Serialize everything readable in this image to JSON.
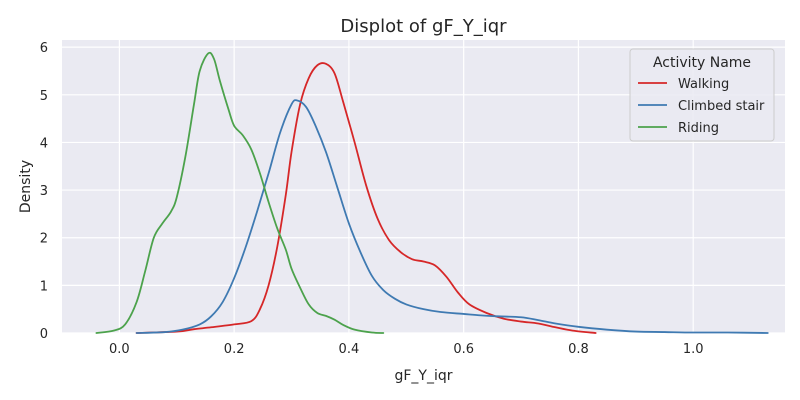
{
  "chart_data": {
    "type": "line",
    "title": "Displot of gF_Y_iqr",
    "xlabel": "gF_Y_iqr",
    "ylabel": "Density",
    "xlim": [
      -0.1,
      1.16
    ],
    "ylim": [
      0,
      6.15
    ],
    "x_ticks": [
      0.0,
      0.2,
      0.4,
      0.6,
      0.8,
      1.0
    ],
    "x_tick_labels": [
      "0.0",
      "0.2",
      "0.4",
      "0.6",
      "0.8",
      "1.0"
    ],
    "y_ticks": [
      0,
      1,
      2,
      3,
      4,
      5,
      6
    ],
    "y_tick_labels": [
      "0",
      "1",
      "2",
      "3",
      "4",
      "5",
      "6"
    ],
    "grid": true,
    "background": "#EAEAF2",
    "grid_color": "#FFFFFF",
    "legend": {
      "title": "Activity Name",
      "position": "top-right"
    },
    "series": [
      {
        "name": "Walking",
        "color": "#D62728",
        "points": [
          [
            0.03,
            0.0
          ],
          [
            0.1,
            0.03
          ],
          [
            0.13,
            0.08
          ],
          [
            0.16,
            0.12
          ],
          [
            0.2,
            0.18
          ],
          [
            0.23,
            0.25
          ],
          [
            0.245,
            0.5
          ],
          [
            0.26,
            1.0
          ],
          [
            0.275,
            1.8
          ],
          [
            0.29,
            2.9
          ],
          [
            0.3,
            3.8
          ],
          [
            0.315,
            4.8
          ],
          [
            0.33,
            5.35
          ],
          [
            0.345,
            5.62
          ],
          [
            0.36,
            5.65
          ],
          [
            0.375,
            5.45
          ],
          [
            0.39,
            4.85
          ],
          [
            0.41,
            4.0
          ],
          [
            0.43,
            3.1
          ],
          [
            0.45,
            2.4
          ],
          [
            0.47,
            1.95
          ],
          [
            0.49,
            1.7
          ],
          [
            0.51,
            1.55
          ],
          [
            0.53,
            1.5
          ],
          [
            0.55,
            1.42
          ],
          [
            0.57,
            1.18
          ],
          [
            0.59,
            0.85
          ],
          [
            0.61,
            0.6
          ],
          [
            0.64,
            0.42
          ],
          [
            0.67,
            0.3
          ],
          [
            0.7,
            0.24
          ],
          [
            0.73,
            0.2
          ],
          [
            0.76,
            0.12
          ],
          [
            0.79,
            0.05
          ],
          [
            0.83,
            0.0
          ]
        ]
      },
      {
        "name": "Climbed stair",
        "color": "#3F7AB2",
        "points": [
          [
            0.03,
            0.0
          ],
          [
            0.08,
            0.02
          ],
          [
            0.11,
            0.07
          ],
          [
            0.14,
            0.18
          ],
          [
            0.16,
            0.35
          ],
          [
            0.18,
            0.65
          ],
          [
            0.2,
            1.15
          ],
          [
            0.22,
            1.8
          ],
          [
            0.24,
            2.55
          ],
          [
            0.26,
            3.35
          ],
          [
            0.28,
            4.2
          ],
          [
            0.3,
            4.8
          ],
          [
            0.31,
            4.88
          ],
          [
            0.325,
            4.75
          ],
          [
            0.34,
            4.4
          ],
          [
            0.36,
            3.8
          ],
          [
            0.38,
            3.05
          ],
          [
            0.4,
            2.3
          ],
          [
            0.42,
            1.7
          ],
          [
            0.44,
            1.2
          ],
          [
            0.46,
            0.9
          ],
          [
            0.48,
            0.72
          ],
          [
            0.5,
            0.6
          ],
          [
            0.53,
            0.5
          ],
          [
            0.56,
            0.44
          ],
          [
            0.6,
            0.4
          ],
          [
            0.63,
            0.37
          ],
          [
            0.66,
            0.35
          ],
          [
            0.7,
            0.33
          ],
          [
            0.73,
            0.27
          ],
          [
            0.76,
            0.2
          ],
          [
            0.8,
            0.13
          ],
          [
            0.85,
            0.07
          ],
          [
            0.9,
            0.03
          ],
          [
            0.95,
            0.02
          ],
          [
            1.0,
            0.01
          ],
          [
            1.06,
            0.01
          ],
          [
            1.13,
            0.0
          ]
        ]
      },
      {
        "name": "Riding",
        "color": "#4CA24C",
        "points": [
          [
            -0.04,
            0.0
          ],
          [
            -0.01,
            0.05
          ],
          [
            0.01,
            0.18
          ],
          [
            0.03,
            0.65
          ],
          [
            0.045,
            1.3
          ],
          [
            0.06,
            2.0
          ],
          [
            0.075,
            2.3
          ],
          [
            0.09,
            2.55
          ],
          [
            0.1,
            2.85
          ],
          [
            0.115,
            3.7
          ],
          [
            0.13,
            4.8
          ],
          [
            0.14,
            5.5
          ],
          [
            0.155,
            5.87
          ],
          [
            0.165,
            5.75
          ],
          [
            0.175,
            5.3
          ],
          [
            0.19,
            4.7
          ],
          [
            0.2,
            4.35
          ],
          [
            0.215,
            4.15
          ],
          [
            0.23,
            3.85
          ],
          [
            0.245,
            3.35
          ],
          [
            0.26,
            2.75
          ],
          [
            0.275,
            2.2
          ],
          [
            0.29,
            1.75
          ],
          [
            0.3,
            1.35
          ],
          [
            0.315,
            0.95
          ],
          [
            0.33,
            0.6
          ],
          [
            0.345,
            0.42
          ],
          [
            0.36,
            0.36
          ],
          [
            0.375,
            0.28
          ],
          [
            0.39,
            0.17
          ],
          [
            0.41,
            0.07
          ],
          [
            0.44,
            0.01
          ],
          [
            0.46,
            0.0
          ]
        ]
      }
    ]
  }
}
